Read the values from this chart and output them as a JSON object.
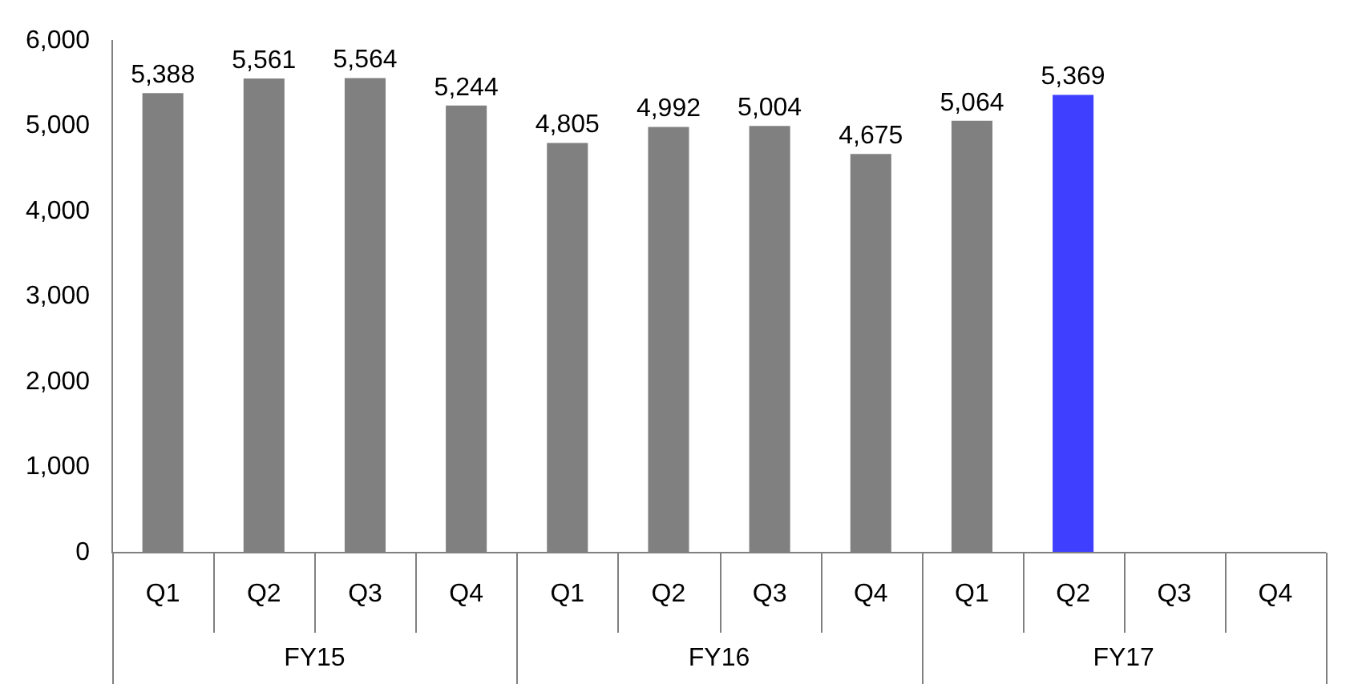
{
  "chart_data": {
    "type": "bar",
    "categories": [
      "Q1",
      "Q2",
      "Q3",
      "Q4",
      "Q1",
      "Q2",
      "Q3",
      "Q4",
      "Q1",
      "Q2",
      "Q3",
      "Q4"
    ],
    "values": [
      5388,
      5561,
      5564,
      5244,
      4805,
      4992,
      5004,
      4675,
      5064,
      5369,
      null,
      null
    ],
    "colors": [
      "#808080",
      "#808080",
      "#808080",
      "#808080",
      "#808080",
      "#808080",
      "#808080",
      "#808080",
      "#808080",
      "#3f3fff",
      "#808080",
      "#808080"
    ],
    "ylim": [
      0,
      6000
    ],
    "yticks": [
      0,
      {
        "value": 1000,
        "label": "1,000"
      },
      {
        "value": 2000,
        "label": "2,000"
      },
      {
        "value": 3000,
        "label": "3,000"
      },
      {
        "value": 4000,
        "label": "4,000"
      },
      {
        "value": 5000,
        "label": "5,000"
      },
      {
        "value": 6000,
        "label": "6,000"
      }
    ],
    "value_labels": [
      "5,388",
      "5,561",
      "5,564",
      "5,244",
      "4,805",
      "4,992",
      "5,004",
      "4,675",
      "5,064",
      "5,369",
      null,
      null
    ],
    "grid": false,
    "legend": false,
    "annotations": [
      "FY15",
      "FY16",
      "FY17"
    ]
  }
}
